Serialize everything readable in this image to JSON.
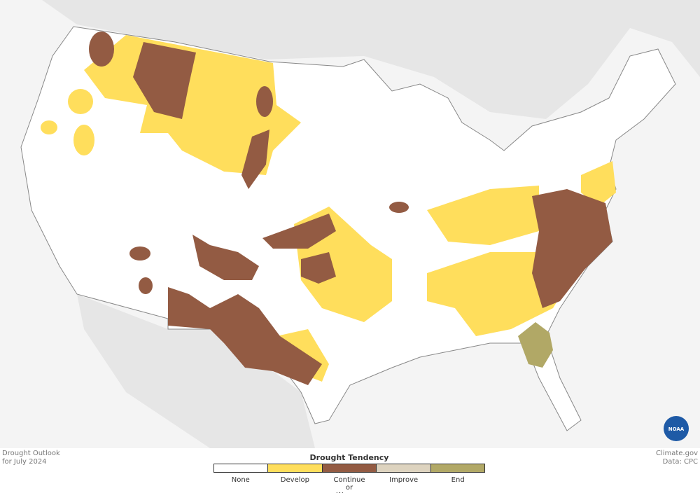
{
  "caption": {
    "line1": "Drought Outlook",
    "line2": "for July 2024"
  },
  "credit": {
    "site": "Climate.gov",
    "source": "Data: CPC"
  },
  "logo": {
    "text": "NOAA"
  },
  "legend": {
    "title": "Drought Tendency",
    "items": [
      {
        "label": "None",
        "color": "#ffffff"
      },
      {
        "label": "Develop",
        "color": "#ffde5c"
      },
      {
        "label": "Continue or Worsen",
        "color": "#935b43"
      },
      {
        "label": "Improve",
        "color": "#ddd3bf"
      },
      {
        "label": "End",
        "color": "#b1a866"
      }
    ]
  }
}
